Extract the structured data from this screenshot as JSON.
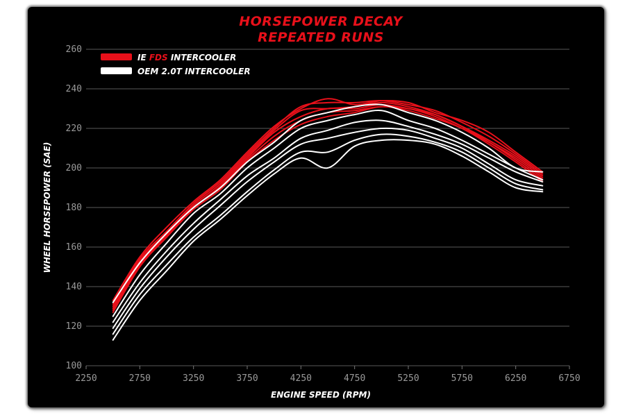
{
  "chart_data": {
    "type": "line",
    "title": "HORSEPOWER DECAY",
    "subtitle": "REPEATED RUNS",
    "xlabel": "ENGINE SPEED (RPM)",
    "ylabel": "WHEEL HORSEPOWER (SAE)",
    "xlim": [
      2250,
      6750
    ],
    "ylim": [
      100,
      260
    ],
    "xticks": [
      2250,
      2750,
      3250,
      3750,
      4250,
      4750,
      5250,
      5750,
      6250,
      6750
    ],
    "yticks": [
      100,
      120,
      140,
      160,
      180,
      200,
      220,
      240,
      260
    ],
    "grid": "horizontal",
    "legend_position": "top-left",
    "legend": [
      {
        "prefix": "IE ",
        "accent": "FDS",
        "suffix": " INTERCOOLER",
        "color": "#e8101a"
      },
      {
        "prefix": "OEM 2.0T INTERCOOLER",
        "accent": "",
        "suffix": "",
        "color": "#ffffff"
      }
    ],
    "x": [
      2500,
      2750,
      3000,
      3250,
      3500,
      3750,
      4000,
      4250,
      4500,
      4750,
      5000,
      5250,
      5500,
      5750,
      6000,
      6250,
      6500
    ],
    "series": [
      {
        "group": "IE FDS INTERCOOLER",
        "color": "#e8101a",
        "values": [
          133,
          155,
          170,
          183,
          194,
          208,
          221,
          230,
          235,
          232,
          234,
          233,
          228,
          224,
          218,
          208,
          198
        ]
      },
      {
        "group": "IE FDS INTERCOOLER",
        "color": "#e8101a",
        "values": [
          131,
          154,
          168,
          182,
          193,
          207,
          220,
          231,
          233,
          233,
          234,
          232,
          229,
          223,
          216,
          207,
          197
        ]
      },
      {
        "group": "IE FDS INTERCOOLER",
        "color": "#e8101a",
        "values": [
          130,
          153,
          167,
          181,
          192,
          206,
          219,
          229,
          230,
          231,
          233,
          231,
          227,
          221,
          214,
          206,
          196
        ]
      },
      {
        "group": "IE FDS INTERCOOLER",
        "color": "#e8101a",
        "values": [
          129,
          152,
          167,
          180,
          191,
          205,
          218,
          226,
          230,
          230,
          232,
          230,
          227,
          221,
          213,
          205,
          195
        ]
      },
      {
        "group": "IE FDS INTERCOOLER",
        "color": "#e8101a",
        "values": [
          128,
          151,
          166,
          180,
          190,
          204,
          216,
          224,
          228,
          229,
          231,
          230,
          226,
          220,
          213,
          204,
          194
        ]
      },
      {
        "group": "IE FDS INTERCOOLER",
        "color": "#e8101a",
        "values": [
          127,
          150,
          165,
          179,
          189,
          203,
          214,
          222,
          226,
          228,
          231,
          229,
          225,
          220,
          212,
          203,
          193
        ]
      },
      {
        "group": "OEM 2.0T INTERCOOLER",
        "color": "#ffffff",
        "values": [
          132,
          152,
          167,
          180,
          190,
          203,
          213,
          224,
          228,
          231,
          232,
          228,
          224,
          218,
          210,
          200,
          198
        ]
      },
      {
        "group": "OEM 2.0T INTERCOOLER",
        "color": "#ffffff",
        "values": [
          125,
          146,
          162,
          177,
          187,
          200,
          210,
          220,
          224,
          227,
          229,
          224,
          220,
          214,
          207,
          200,
          194
        ]
      },
      {
        "group": "OEM 2.0T INTERCOOLER",
        "color": "#ffffff",
        "values": [
          122,
          142,
          158,
          172,
          184,
          196,
          205,
          215,
          219,
          223,
          224,
          221,
          217,
          212,
          205,
          198,
          193
        ]
      },
      {
        "group": "OEM 2.0T INTERCOOLER",
        "color": "#ffffff",
        "values": [
          119,
          139,
          155,
          169,
          181,
          193,
          203,
          212,
          215,
          218,
          220,
          219,
          215,
          210,
          202,
          194,
          191
        ]
      },
      {
        "group": "OEM 2.0T INTERCOOLER",
        "color": "#ffffff",
        "values": [
          116,
          136,
          151,
          165,
          176,
          188,
          199,
          208,
          208,
          214,
          217,
          216,
          213,
          208,
          200,
          192,
          189
        ]
      },
      {
        "group": "OEM 2.0T INTERCOOLER",
        "color": "#ffffff",
        "values": [
          113,
          133,
          148,
          163,
          174,
          186,
          197,
          205,
          200,
          211,
          214,
          214,
          212,
          206,
          198,
          190,
          188
        ]
      }
    ]
  }
}
